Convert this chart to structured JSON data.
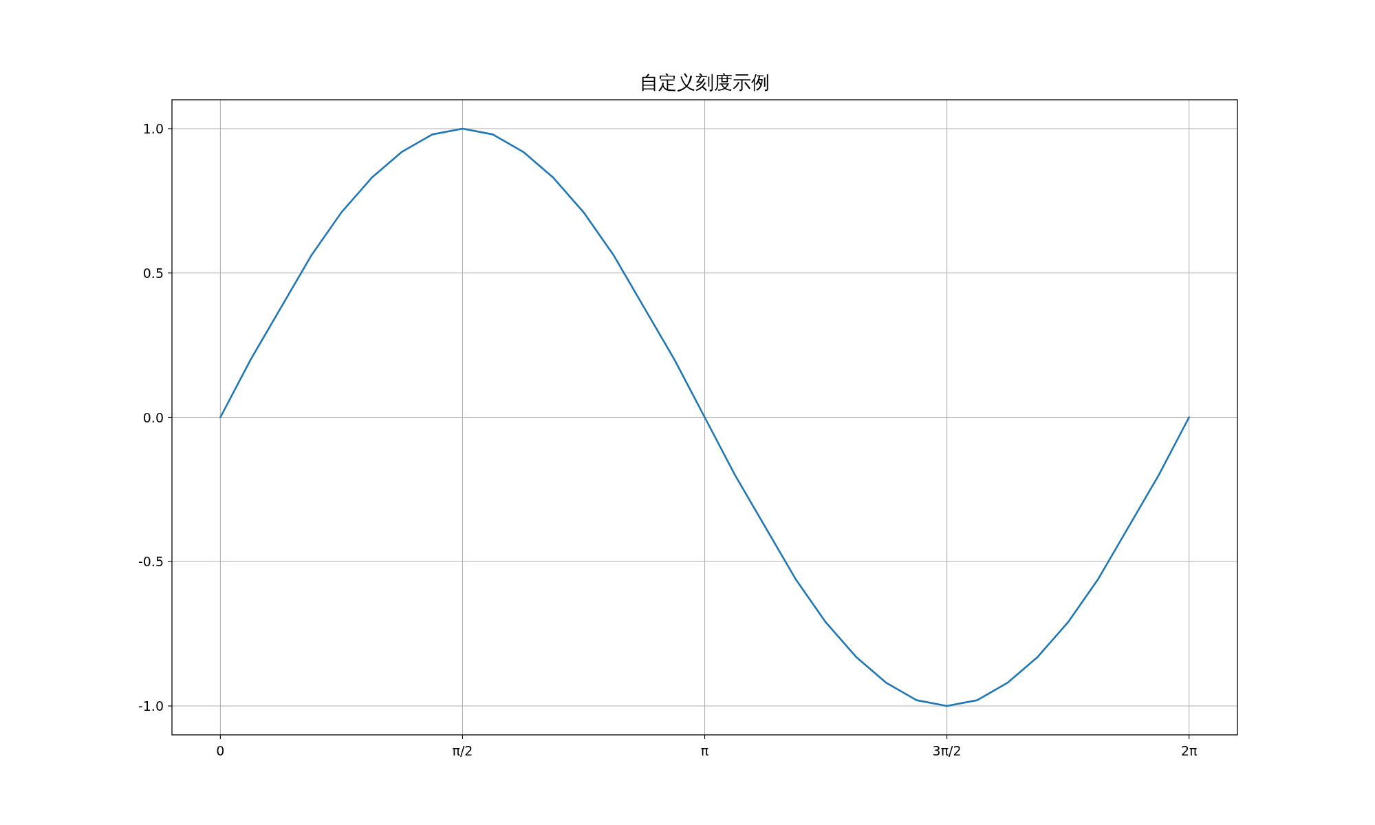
{
  "chart_data": {
    "type": "line",
    "title": "自定义刻度示例",
    "x": [
      0,
      0.19635,
      0.3927,
      0.58905,
      0.7854,
      0.98175,
      1.1781,
      1.37445,
      1.5708,
      1.76715,
      1.9635,
      2.15985,
      2.3562,
      2.55255,
      2.7489,
      2.94525,
      3.14159,
      3.33794,
      3.53429,
      3.73064,
      3.92699,
      4.12334,
      4.31969,
      4.51604,
      4.71239,
      4.90874,
      5.10509,
      5.30144,
      5.49779,
      5.69414,
      5.89049,
      6.08684,
      6.28319
    ],
    "values": [
      0,
      0.2,
      0.38,
      0.56,
      0.71,
      0.83,
      0.92,
      0.98,
      1.0,
      0.98,
      0.92,
      0.83,
      0.71,
      0.56,
      0.38,
      0.2,
      0,
      -0.2,
      -0.38,
      -0.56,
      -0.71,
      -0.83,
      -0.92,
      -0.98,
      -1.0,
      -0.98,
      -0.92,
      -0.83,
      -0.71,
      -0.56,
      -0.38,
      -0.2,
      0
    ],
    "color": "#1f77b4",
    "xlim": [
      -0.314,
      6.597
    ],
    "ylim": [
      -1.1,
      1.1
    ],
    "xticks": [
      0,
      {
        "value": 1.5708,
        "label": "π/2"
      },
      {
        "value": 3.14159,
        "label": "π"
      },
      {
        "value": 4.71239,
        "label": "3π/2"
      },
      {
        "value": 6.28319,
        "label": "2π"
      }
    ],
    "yticks": [
      {
        "value": -1,
        "label": "-1.0"
      },
      {
        "value": -0.5,
        "label": "-0.5"
      },
      {
        "value": 0,
        "label": "0.0"
      },
      {
        "value": 0.5,
        "label": "0.5"
      },
      {
        "value": 1,
        "label": "1.0"
      }
    ],
    "grid": true
  }
}
